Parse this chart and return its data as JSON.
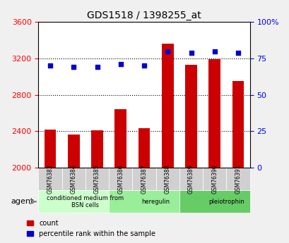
{
  "title": "GDS1518 / 1398255_at",
  "categories": [
    "GSM76383",
    "GSM76384",
    "GSM76385",
    "GSM76386",
    "GSM76387",
    "GSM76388",
    "GSM76389",
    "GSM76390",
    "GSM76391"
  ],
  "counts": [
    2420,
    2360,
    2410,
    2640,
    2430,
    3360,
    3130,
    3190,
    2950
  ],
  "percentiles": [
    70,
    69,
    69,
    71,
    70,
    80,
    79,
    80,
    79
  ],
  "y_min": 2000,
  "y_max": 3600,
  "y_ticks": [
    2000,
    2400,
    2800,
    3200,
    3600
  ],
  "y2_ticks": [
    0,
    25,
    50,
    75,
    100
  ],
  "bar_color": "#cc0000",
  "dot_color": "#0000cc",
  "groups": [
    {
      "label": "conditioned medium from\nBSN cells",
      "start": 0,
      "end": 3,
      "color": "#ccffcc"
    },
    {
      "label": "heregulin",
      "start": 3,
      "end": 6,
      "color": "#99ee99"
    },
    {
      "label": "pleiotrophin",
      "start": 6,
      "end": 9,
      "color": "#66cc66"
    }
  ],
  "agent_label": "agent",
  "legend_count": "count",
  "legend_pct": "percentile rank within the sample",
  "bg_color": "#e8e8e8",
  "plot_bg": "#ffffff"
}
